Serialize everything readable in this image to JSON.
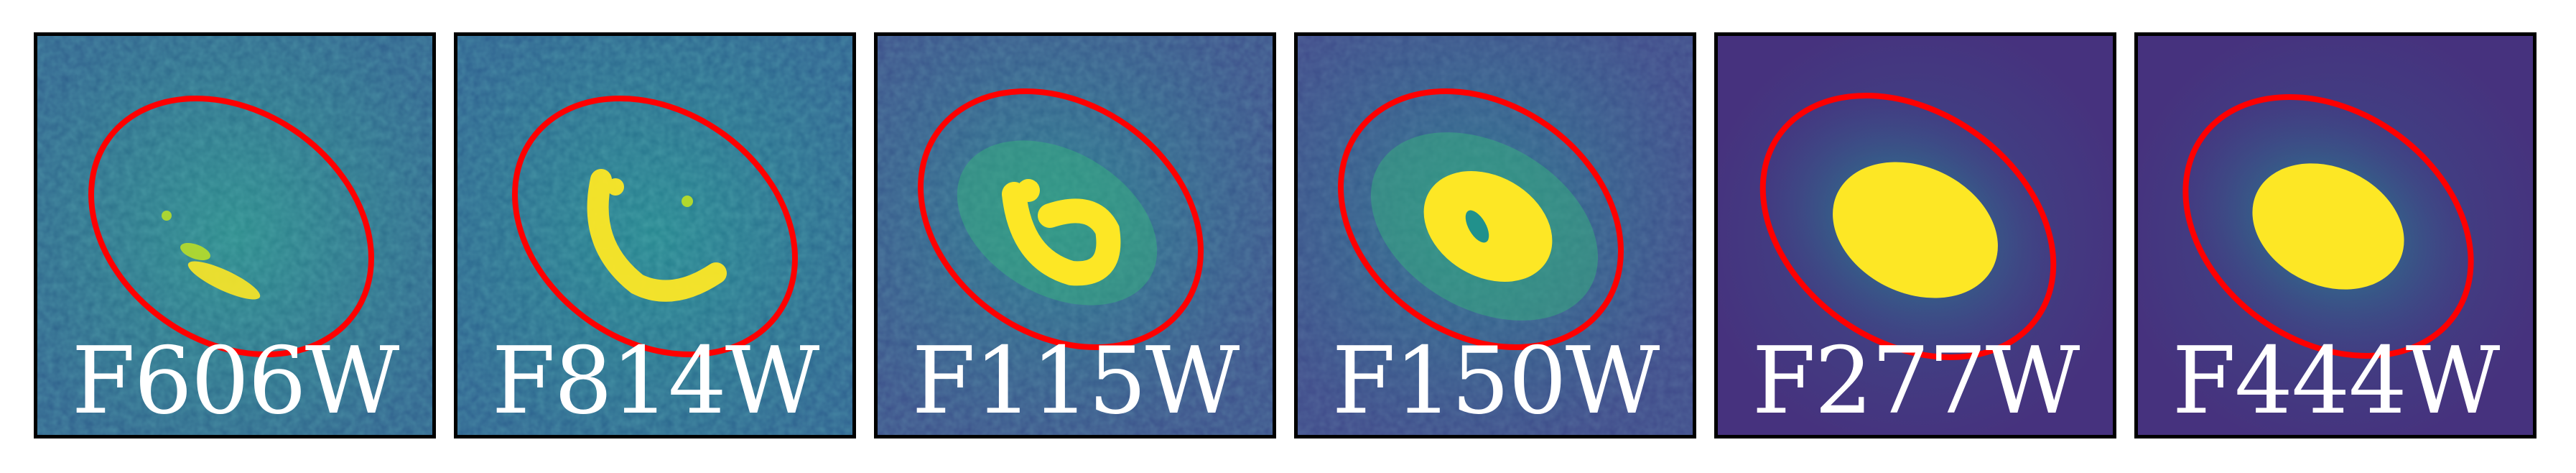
{
  "figure": {
    "panels": [
      {
        "filter": "F606W",
        "colors": {
          "bg_low": "#2f5f8c",
          "bg_mid": "#2b8a8a",
          "source": "#b8de29"
        }
      },
      {
        "filter": "F814W",
        "colors": {
          "bg_low": "#2d5f8e",
          "bg_mid": "#25858e",
          "source": "#fde725"
        }
      },
      {
        "filter": "F115W",
        "colors": {
          "bg_low": "#3b4f8a",
          "bg_mid": "#2a788e",
          "source": "#fde725"
        }
      },
      {
        "filter": "F150W",
        "colors": {
          "bg_low": "#3e4989",
          "bg_mid": "#2c728e",
          "source": "#fde725"
        }
      },
      {
        "filter": "F277W",
        "colors": {
          "bg_low": "#46327e",
          "bg_mid": "#365c8d",
          "source": "#fde725"
        }
      },
      {
        "filter": "F444W",
        "colors": {
          "bg_low": "#46327e",
          "bg_mid": "#365c8d",
          "source": "#fde725"
        }
      }
    ],
    "ellipse_color": "#ff0000",
    "colormap": "viridis"
  }
}
